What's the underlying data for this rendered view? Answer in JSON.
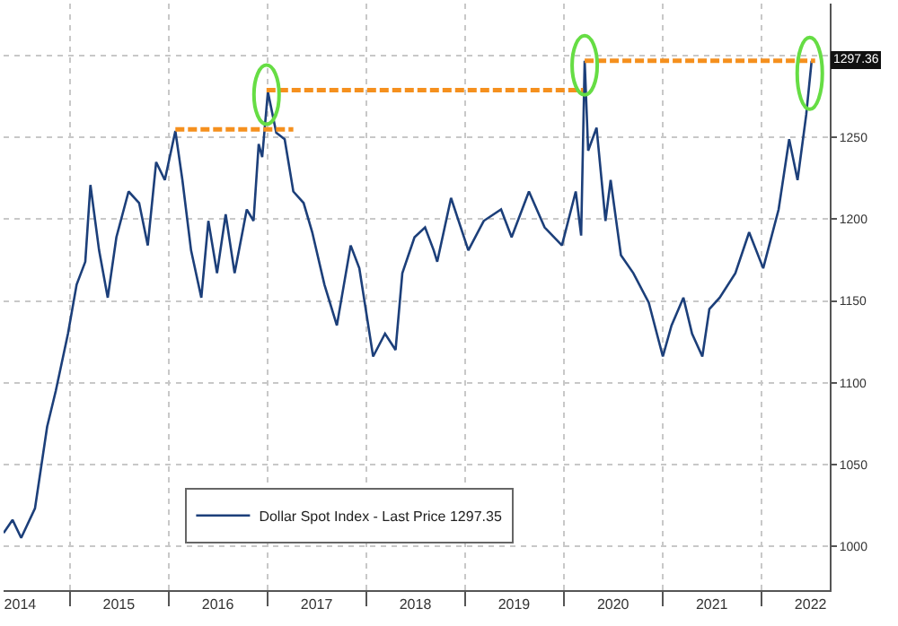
{
  "chart_data": {
    "type": "line",
    "x": [
      "2014-05-01",
      "2014-06-03",
      "2014-07-05",
      "2014-08-25",
      "2014-10-09",
      "2014-11-10",
      "2014-12-25",
      "2015-01-26",
      "2015-02-27",
      "2015-03-18",
      "2015-04-19",
      "2015-05-21",
      "2015-06-22",
      "2015-08-06",
      "2015-09-14",
      "2015-10-16",
      "2015-11-16",
      "2015-12-18",
      "2016-01-26",
      "2016-02-21",
      "2016-03-24",
      "2016-05-01",
      "2016-05-27",
      "2016-06-28",
      "2016-07-30",
      "2016-09-01",
      "2016-10-16",
      "2016-11-10",
      "2016-11-29",
      "2016-12-12",
      "2017-01-02",
      "2017-02-02",
      "2017-03-05",
      "2017-04-06",
      "2017-05-14",
      "2017-06-15",
      "2017-07-30",
      "2017-09-14",
      "2017-11-04",
      "2017-12-06",
      "2018-01-26",
      "2018-03-11",
      "2018-04-19",
      "2018-05-14",
      "2018-06-28",
      "2018-08-06",
      "2018-09-07",
      "2018-09-20",
      "2018-11-10",
      "2019-01-13",
      "2019-03-11",
      "2019-05-14",
      "2019-06-22",
      "2019-08-25",
      "2019-10-22",
      "2019-12-25",
      "2020-02-14",
      "2020-03-05",
      "2020-03-18",
      "2020-03-31",
      "2020-05-01",
      "2020-06-03",
      "2020-06-22",
      "2020-07-30",
      "2020-09-14",
      "2020-11-10",
      "2021-01-01",
      "2021-02-02",
      "2021-03-18",
      "2021-04-19",
      "2021-05-27",
      "2021-06-22",
      "2021-07-30",
      "2021-09-26",
      "2021-11-16",
      "2022-01-07",
      "2022-03-05",
      "2022-04-13",
      "2022-05-14",
      "2022-06-15",
      "2022-07-05"
    ],
    "series": [
      {
        "name": "Dollar Spot Index - Last Price 1297.35",
        "color": "#1c3f7a",
        "values": [
          1008,
          1016,
          1005,
          1023,
          1073,
          1095,
          1130,
          1160,
          1174,
          1221,
          1181,
          1152,
          1189,
          1217,
          1210,
          1184,
          1235,
          1224,
          1254,
          1224,
          1181,
          1152,
          1199,
          1167,
          1203,
          1167,
          1206,
          1199,
          1246,
          1238,
          1278,
          1253,
          1249,
          1217,
          1210,
          1192,
          1160,
          1135,
          1184,
          1170,
          1116,
          1130,
          1120,
          1167,
          1189,
          1195,
          1181,
          1174,
          1213,
          1181,
          1199,
          1206,
          1189,
          1217,
          1195,
          1184,
          1217,
          1190,
          1297,
          1242,
          1256,
          1199,
          1224,
          1178,
          1167,
          1149,
          1116,
          1135,
          1152,
          1130,
          1116,
          1145,
          1152,
          1167,
          1192,
          1170,
          1206,
          1249,
          1224,
          1264,
          1297
        ]
      },
      {
        "type": "line",
        "line_style": "dashed",
        "color": "#f5901e",
        "x": [
          "2016-01-26",
          "2017-04-06"
        ],
        "values": [
          1255,
          1255
        ]
      },
      {
        "type": "line",
        "line_style": "dashed",
        "color": "#f5901e",
        "x": [
          "2016-12-28",
          "2020-03-12"
        ],
        "values": [
          1279,
          1279
        ]
      },
      {
        "type": "line",
        "line_style": "dashed",
        "color": "#f5901e",
        "x": [
          "2020-03-18",
          "2022-07-18"
        ],
        "values": [
          1297,
          1297
        ]
      }
    ],
    "xlim": [
      "2014-05-01",
      "2022-09-10"
    ],
    "xticks": [
      {
        "value": "2014-07-01",
        "label": "2014"
      },
      {
        "value": "2015-01-01",
        "label": null
      },
      {
        "value": "2015-07-01",
        "label": "2015"
      },
      {
        "value": "2016-01-01",
        "label": null
      },
      {
        "value": "2016-07-01",
        "label": "2016"
      },
      {
        "value": "2017-01-01",
        "label": null
      },
      {
        "value": "2017-07-01",
        "label": "2017"
      },
      {
        "value": "2018-01-01",
        "label": null
      },
      {
        "value": "2018-07-01",
        "label": "2018"
      },
      {
        "value": "2019-01-01",
        "label": null
      },
      {
        "value": "2019-07-01",
        "label": "2019"
      },
      {
        "value": "2020-01-01",
        "label": null
      },
      {
        "value": "2020-07-01",
        "label": "2020"
      },
      {
        "value": "2021-01-01",
        "label": null
      },
      {
        "value": "2021-07-01",
        "label": "2021"
      },
      {
        "value": "2022-01-01",
        "label": null
      },
      {
        "value": "2022-07-01",
        "label": "2022"
      }
    ],
    "ylim": [
      973,
      1332
    ],
    "yticks": [
      1000,
      1050,
      1100,
      1150,
      1200,
      1250,
      {
        "value": 1300,
        "label": null
      }
    ],
    "annotations": [
      {
        "text": "1297.36",
        "x": "2022-07-05",
        "y": 1297.36
      }
    ],
    "grid": true,
    "legend": "bottom",
    "marker": "none",
    "line_style": "solid"
  }
}
